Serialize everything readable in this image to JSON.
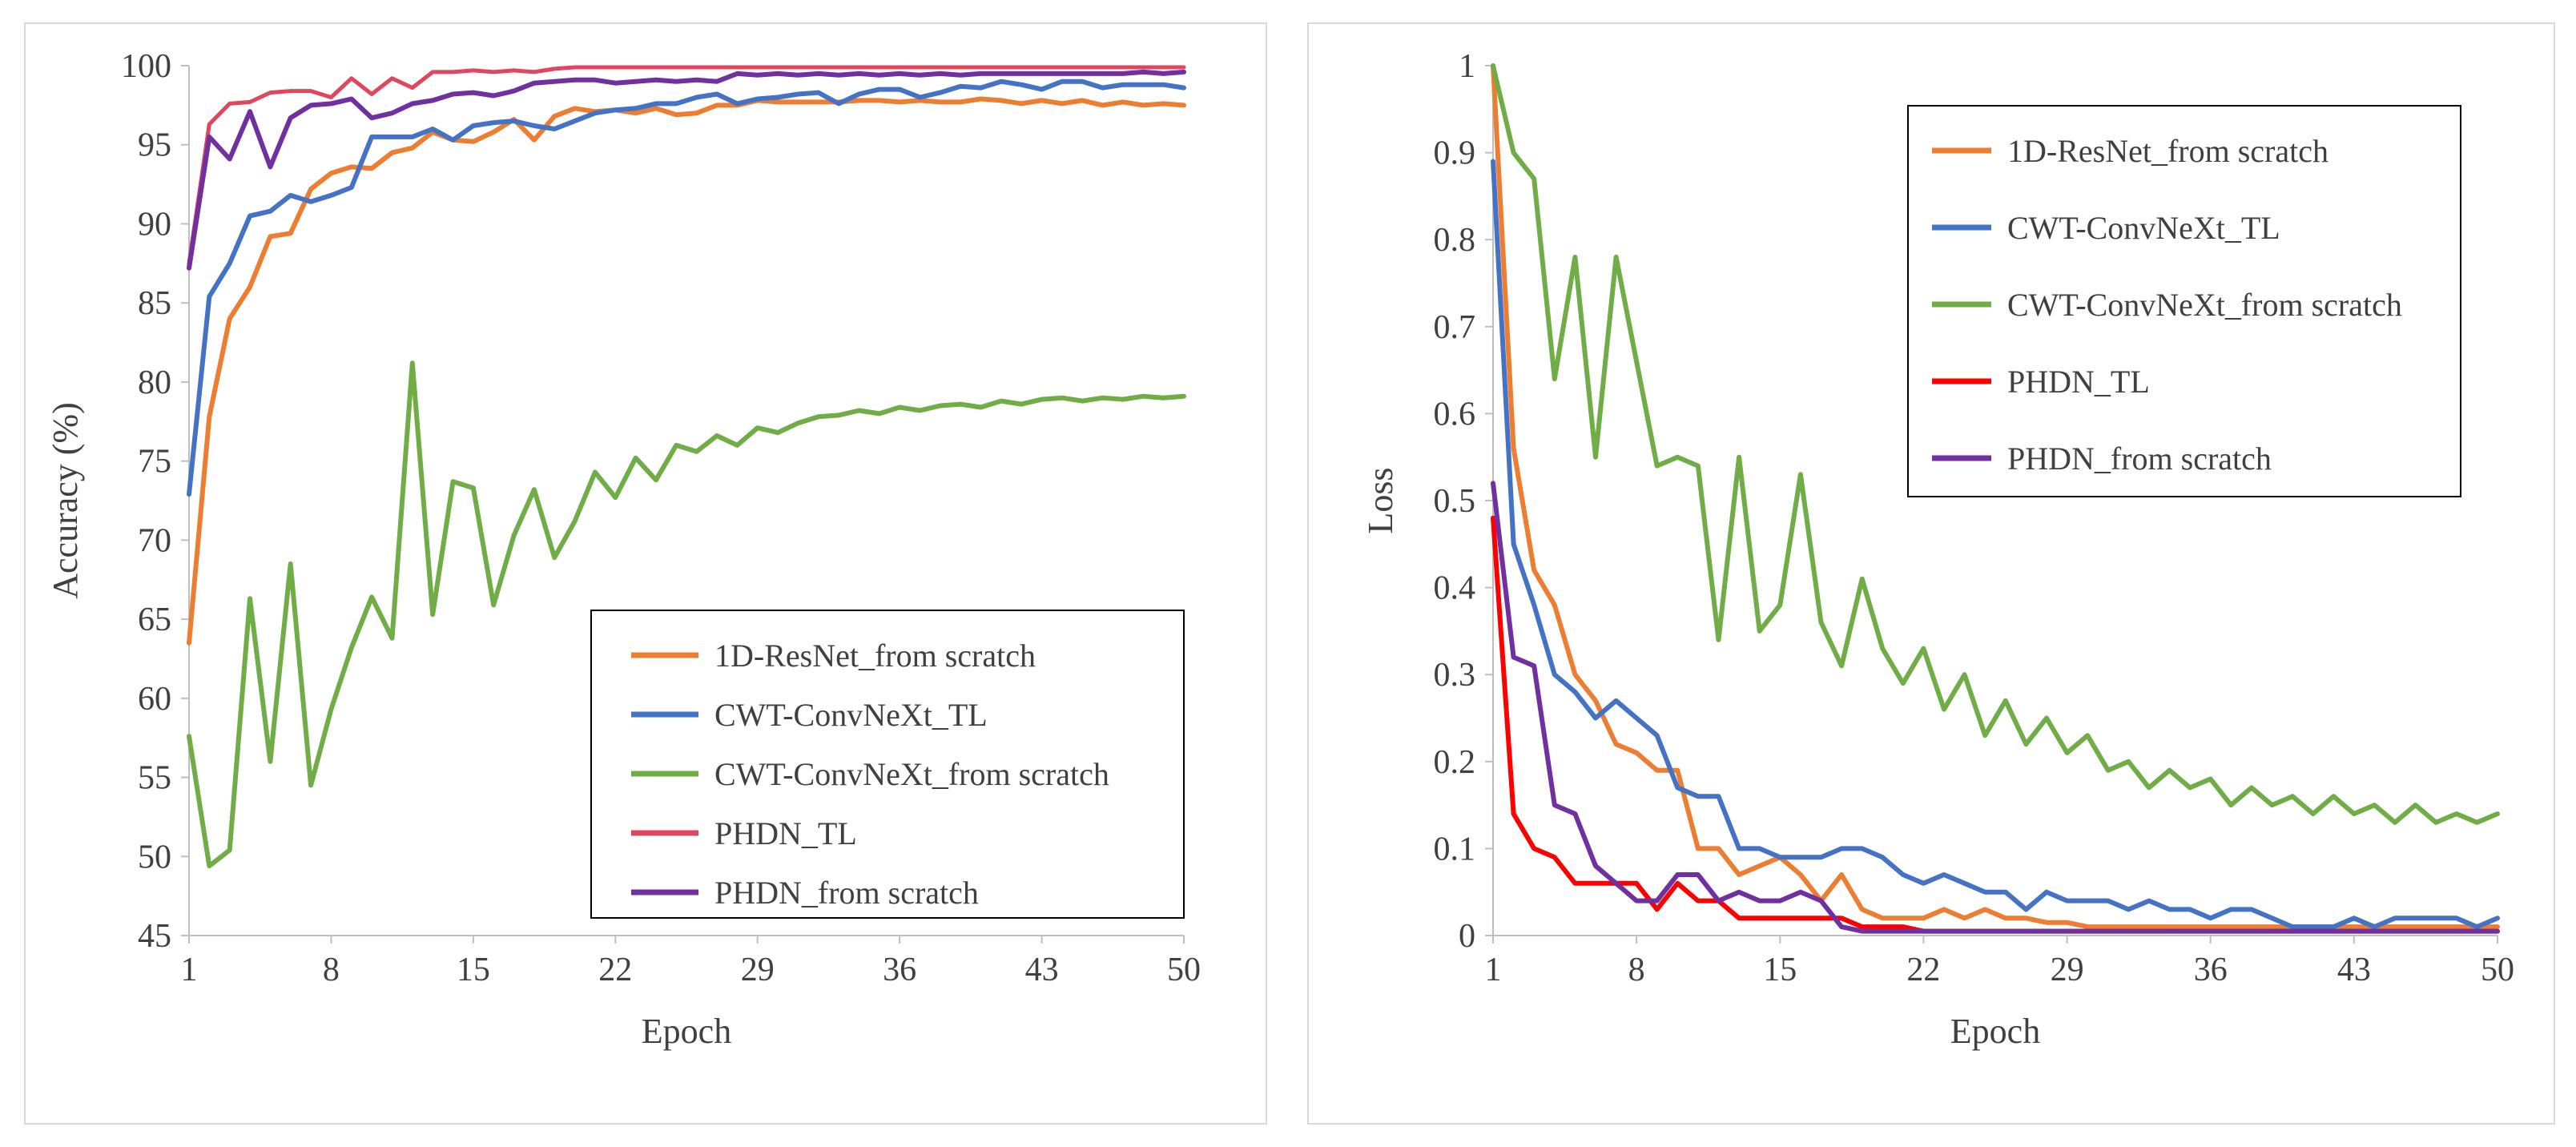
{
  "series_colors": {
    "1D-ResNet_from scratch": "#ED7D31",
    "CWT-ConvNeXt_TL": "#4472C4",
    "CWT-ConvNeXt_from scratch": "#70AD47",
    "PHDN_TL": "#FF0000",
    "PHDN_from scratch": "#7030A0"
  },
  "chart_data": [
    {
      "type": "line",
      "title": "",
      "xlabel": "Epoch",
      "ylabel": "Accuracy (%)",
      "xlim": [
        1,
        50
      ],
      "ylim": [
        45,
        100
      ],
      "xticks": [
        1,
        8,
        15,
        22,
        29,
        36,
        43,
        50
      ],
      "yticks": [
        45,
        50,
        55,
        60,
        65,
        70,
        75,
        80,
        85,
        90,
        95,
        100
      ],
      "x": [
        1,
        2,
        3,
        4,
        5,
        6,
        7,
        8,
        9,
        10,
        11,
        12,
        13,
        14,
        15,
        16,
        17,
        18,
        19,
        20,
        21,
        22,
        23,
        24,
        25,
        26,
        27,
        28,
        29,
        30,
        31,
        32,
        33,
        34,
        35,
        36,
        37,
        38,
        39,
        40,
        41,
        42,
        43,
        44,
        45,
        46,
        47,
        48,
        49,
        50
      ],
      "legend_position": "bottom-right",
      "series": [
        {
          "name": "1D-ResNet_from scratch",
          "color": "#ED7D31",
          "values": [
            63.5,
            77.8,
            84,
            86,
            89.2,
            89.4,
            92.2,
            93.2,
            93.6,
            93.5,
            94.5,
            94.8,
            95.8,
            95.3,
            95.2,
            95.8,
            96.6,
            95.3,
            96.8,
            97.3,
            97.1,
            97.2,
            97.0,
            97.3,
            96.9,
            97.0,
            97.5,
            97.5,
            97.8,
            97.7,
            97.7,
            97.7,
            97.7,
            97.8,
            97.8,
            97.7,
            97.8,
            97.7,
            97.7,
            97.9,
            97.8,
            97.6,
            97.8,
            97.6,
            97.8,
            97.5,
            97.7,
            97.5,
            97.6,
            97.5
          ]
        },
        {
          "name": "CWT-ConvNeXt_TL",
          "color": "#4472C4",
          "values": [
            72.9,
            85.4,
            87.5,
            90.5,
            90.8,
            91.8,
            91.4,
            91.8,
            92.3,
            95.5,
            95.5,
            95.5,
            96.0,
            95.3,
            96.2,
            96.4,
            96.5,
            96.2,
            96.0,
            96.5,
            97.0,
            97.2,
            97.3,
            97.6,
            97.6,
            98.0,
            98.2,
            97.6,
            97.9,
            98.0,
            98.2,
            98.3,
            97.6,
            98.2,
            98.5,
            98.5,
            98.0,
            98.3,
            98.7,
            98.6,
            99.0,
            98.8,
            98.5,
            99.0,
            99.0,
            98.6,
            98.8,
            98.8,
            98.8,
            98.6
          ]
        },
        {
          "name": "CWT-ConvNeXt_from scratch",
          "color": "#70AD47",
          "values": [
            57.6,
            49.4,
            50.4,
            66.3,
            56,
            68.5,
            54.5,
            59.3,
            63.2,
            66.4,
            63.8,
            81.2,
            65.3,
            73.7,
            73.3,
            65.9,
            70.3,
            73.2,
            68.9,
            71.2,
            74.3,
            72.7,
            75.2,
            73.8,
            76,
            75.6,
            76.6,
            76,
            77.1,
            76.8,
            77.4,
            77.8,
            77.9,
            78.2,
            78.0,
            78.4,
            78.2,
            78.5,
            78.6,
            78.4,
            78.8,
            78.6,
            78.9,
            79.0,
            78.8,
            79.0,
            78.9,
            79.1,
            79.0,
            79.1
          ]
        },
        {
          "name": "PHDN_TL",
          "color": "#E0465D",
          "values": [
            87.5,
            96.3,
            97.6,
            97.7,
            98.3,
            98.4,
            98.4,
            98.0,
            99.2,
            98.2,
            99.2,
            98.6,
            99.6,
            99.6,
            99.7,
            99.6,
            99.7,
            99.6,
            99.8,
            99.9,
            99.9,
            99.9,
            99.9,
            99.9,
            99.9,
            99.9,
            99.9,
            99.9,
            99.9,
            99.9,
            99.9,
            99.9,
            99.9,
            99.9,
            99.9,
            99.9,
            99.9,
            99.9,
            99.9,
            99.9,
            99.9,
            99.9,
            99.9,
            99.9,
            99.9,
            99.9,
            99.9,
            99.9,
            99.9,
            99.9
          ]
        },
        {
          "name": "PHDN_from scratch",
          "color": "#7030A0",
          "values": [
            87.2,
            95.5,
            94.1,
            97.1,
            93.6,
            96.7,
            97.5,
            97.6,
            97.9,
            96.7,
            97.0,
            97.6,
            97.8,
            98.2,
            98.3,
            98.1,
            98.4,
            98.9,
            99.0,
            99.1,
            99.1,
            98.9,
            99.0,
            99.1,
            99.0,
            99.1,
            99.0,
            99.5,
            99.4,
            99.5,
            99.4,
            99.5,
            99.4,
            99.5,
            99.4,
            99.5,
            99.4,
            99.5,
            99.4,
            99.5,
            99.5,
            99.5,
            99.5,
            99.5,
            99.5,
            99.5,
            99.5,
            99.6,
            99.5,
            99.6
          ]
        }
      ]
    },
    {
      "type": "line",
      "title": "",
      "xlabel": "Epoch",
      "ylabel": "Loss",
      "xlim": [
        1,
        50
      ],
      "ylim": [
        0,
        1
      ],
      "xticks": [
        1,
        8,
        15,
        22,
        29,
        36,
        43,
        50
      ],
      "yticks": [
        0,
        0.1,
        0.2,
        0.3,
        0.4,
        0.5,
        0.6,
        0.7,
        0.8,
        0.9,
        1
      ],
      "x": [
        1,
        2,
        3,
        4,
        5,
        6,
        7,
        8,
        9,
        10,
        11,
        12,
        13,
        14,
        15,
        16,
        17,
        18,
        19,
        20,
        21,
        22,
        23,
        24,
        25,
        26,
        27,
        28,
        29,
        30,
        31,
        32,
        33,
        34,
        35,
        36,
        37,
        38,
        39,
        40,
        41,
        42,
        43,
        44,
        45,
        46,
        47,
        48,
        49,
        50
      ],
      "legend_position": "top-right",
      "series": [
        {
          "name": "1D-ResNet_from scratch",
          "color": "#ED7D31",
          "values": [
            1.0,
            0.56,
            0.42,
            0.38,
            0.3,
            0.27,
            0.22,
            0.21,
            0.19,
            0.19,
            0.1,
            0.1,
            0.07,
            0.08,
            0.09,
            0.07,
            0.04,
            0.07,
            0.03,
            0.02,
            0.02,
            0.02,
            0.03,
            0.02,
            0.03,
            0.02,
            0.02,
            0.015,
            0.015,
            0.01,
            0.01,
            0.01,
            0.01,
            0.01,
            0.01,
            0.01,
            0.01,
            0.01,
            0.01,
            0.01,
            0.01,
            0.01,
            0.01,
            0.01,
            0.01,
            0.01,
            0.01,
            0.01,
            0.01,
            0.01
          ]
        },
        {
          "name": "CWT-ConvNeXt_TL",
          "color": "#4472C4",
          "values": [
            0.89,
            0.45,
            0.38,
            0.3,
            0.28,
            0.25,
            0.27,
            0.25,
            0.23,
            0.17,
            0.16,
            0.16,
            0.1,
            0.1,
            0.09,
            0.09,
            0.09,
            0.1,
            0.1,
            0.09,
            0.07,
            0.06,
            0.07,
            0.06,
            0.05,
            0.05,
            0.03,
            0.05,
            0.04,
            0.04,
            0.04,
            0.03,
            0.04,
            0.03,
            0.03,
            0.02,
            0.03,
            0.03,
            0.02,
            0.01,
            0.01,
            0.01,
            0.02,
            0.01,
            0.02,
            0.02,
            0.02,
            0.02,
            0.01,
            0.02
          ]
        },
        {
          "name": "CWT-ConvNeXt_from scratch",
          "color": "#70AD47",
          "values": [
            1.0,
            0.9,
            0.87,
            0.64,
            0.78,
            0.55,
            0.78,
            0.66,
            0.54,
            0.55,
            0.54,
            0.34,
            0.55,
            0.35,
            0.38,
            0.53,
            0.36,
            0.31,
            0.41,
            0.33,
            0.29,
            0.33,
            0.26,
            0.3,
            0.23,
            0.27,
            0.22,
            0.25,
            0.21,
            0.23,
            0.19,
            0.2,
            0.17,
            0.19,
            0.17,
            0.18,
            0.15,
            0.17,
            0.15,
            0.16,
            0.14,
            0.16,
            0.14,
            0.15,
            0.13,
            0.15,
            0.13,
            0.14,
            0.13,
            0.14
          ]
        },
        {
          "name": "PHDN_TL",
          "color": "#FF0000",
          "values": [
            0.48,
            0.14,
            0.1,
            0.09,
            0.06,
            0.06,
            0.06,
            0.06,
            0.03,
            0.06,
            0.04,
            0.04,
            0.02,
            0.02,
            0.02,
            0.02,
            0.02,
            0.02,
            0.01,
            0.01,
            0.01,
            0.005,
            0.005,
            0.005,
            0.005,
            0.005,
            0.005,
            0.005,
            0.005,
            0.005,
            0.005,
            0.005,
            0.005,
            0.005,
            0.005,
            0.005,
            0.005,
            0.005,
            0.005,
            0.005,
            0.005,
            0.005,
            0.005,
            0.005,
            0.005,
            0.005,
            0.005,
            0.005,
            0.005,
            0.005
          ]
        },
        {
          "name": "PHDN_from scratch",
          "color": "#7030A0",
          "values": [
            0.52,
            0.32,
            0.31,
            0.15,
            0.14,
            0.08,
            0.06,
            0.04,
            0.04,
            0.07,
            0.07,
            0.04,
            0.05,
            0.04,
            0.04,
            0.05,
            0.04,
            0.01,
            0.005,
            0.005,
            0.005,
            0.005,
            0.005,
            0.005,
            0.005,
            0.005,
            0.005,
            0.005,
            0.005,
            0.005,
            0.005,
            0.005,
            0.005,
            0.005,
            0.005,
            0.005,
            0.005,
            0.005,
            0.005,
            0.005,
            0.005,
            0.005,
            0.005,
            0.005,
            0.005,
            0.005,
            0.005,
            0.005,
            0.005,
            0.005
          ]
        }
      ]
    }
  ]
}
